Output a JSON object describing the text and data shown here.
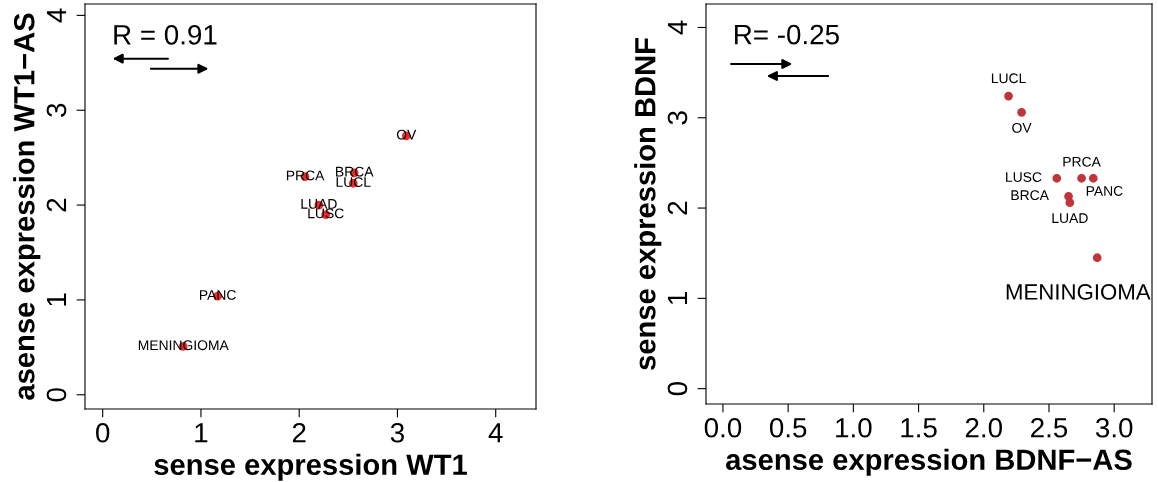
{
  "chart_data": [
    {
      "type": "scatter",
      "xlabel": "sense expression WT1",
      "ylabel": "asense expression WT1−AS",
      "xlim": [
        -0.18,
        4.41
      ],
      "ylim": [
        -0.15,
        4.12
      ],
      "xticks": [
        0,
        1,
        2,
        3,
        4
      ],
      "yticks": [
        0,
        1,
        2,
        3,
        4
      ],
      "grid": false,
      "legend": false,
      "marker": "circle",
      "series": [
        {
          "color": "#f02a2a",
          "x": [
            0.82,
            1.17,
            2.06,
            2.56,
            2.55,
            2.2,
            2.27,
            3.09
          ],
          "values": [
            0.51,
            1.04,
            2.3,
            2.34,
            2.23,
            2.0,
            1.9,
            2.73
          ]
        }
      ],
      "annotations": [
        "R = 0.91",
        {
          "text": "MENINGIOMA",
          "x": 0.82,
          "y": 0.51
        },
        {
          "text": "PANC",
          "x": 1.17,
          "y": 1.04
        },
        {
          "text": "PRCA",
          "x": 2.06,
          "y": 2.3
        },
        {
          "text": "BRCA",
          "x": 2.56,
          "y": 2.34
        },
        {
          "text": "LUCL",
          "x": 2.55,
          "y": 2.23
        },
        {
          "text": "LUAD",
          "x": 2.2,
          "y": 2.0
        },
        {
          "text": "LUSC",
          "x": 2.27,
          "y": 1.9
        },
        {
          "text": "OV",
          "x": 3.09,
          "y": 2.73
        }
      ]
    },
    {
      "type": "scatter",
      "xlabel": "asense expression BDNF−AS",
      "ylabel": "sense expression BDNF",
      "xlim": [
        -0.13,
        3.29
      ],
      "ylim": [
        -0.17,
        4.26
      ],
      "xticks": [
        {
          "value": 0,
          "label": "0.0"
        },
        0.5,
        {
          "value": 1,
          "label": "1.0"
        },
        1.5,
        {
          "value": 2,
          "label": "2.0"
        },
        2.5,
        {
          "value": 3,
          "label": "3.0"
        }
      ],
      "yticks": [
        0,
        1,
        2,
        3,
        4
      ],
      "grid": false,
      "legend": false,
      "marker": "circle",
      "series": [
        {
          "color": "#c0353a",
          "x": [
            2.19,
            2.29,
            2.56,
            2.75,
            2.84,
            2.65,
            2.66,
            2.87
          ],
          "values": [
            3.24,
            3.06,
            2.33,
            2.33,
            2.33,
            2.13,
            2.06,
            1.45
          ]
        }
      ],
      "annotations": [
        "R= -0.25",
        {
          "text": "LUCL",
          "x": 2.19,
          "y": 3.24
        },
        {
          "text": "OV",
          "x": 2.29,
          "y": 3.06
        },
        {
          "text": "LUSC",
          "x": 2.56,
          "y": 2.33
        },
        {
          "text": "PRCA",
          "x": 2.75,
          "y": 2.33
        },
        {
          "text": "PANC",
          "x": 2.84,
          "y": 2.33
        },
        {
          "text": "BRCA",
          "x": 2.65,
          "y": 2.13
        },
        {
          "text": "LUAD",
          "x": 2.66,
          "y": 2.06
        },
        {
          "text": "MENINGIOMA",
          "x": 2.87,
          "y": 1.45
        }
      ]
    }
  ]
}
